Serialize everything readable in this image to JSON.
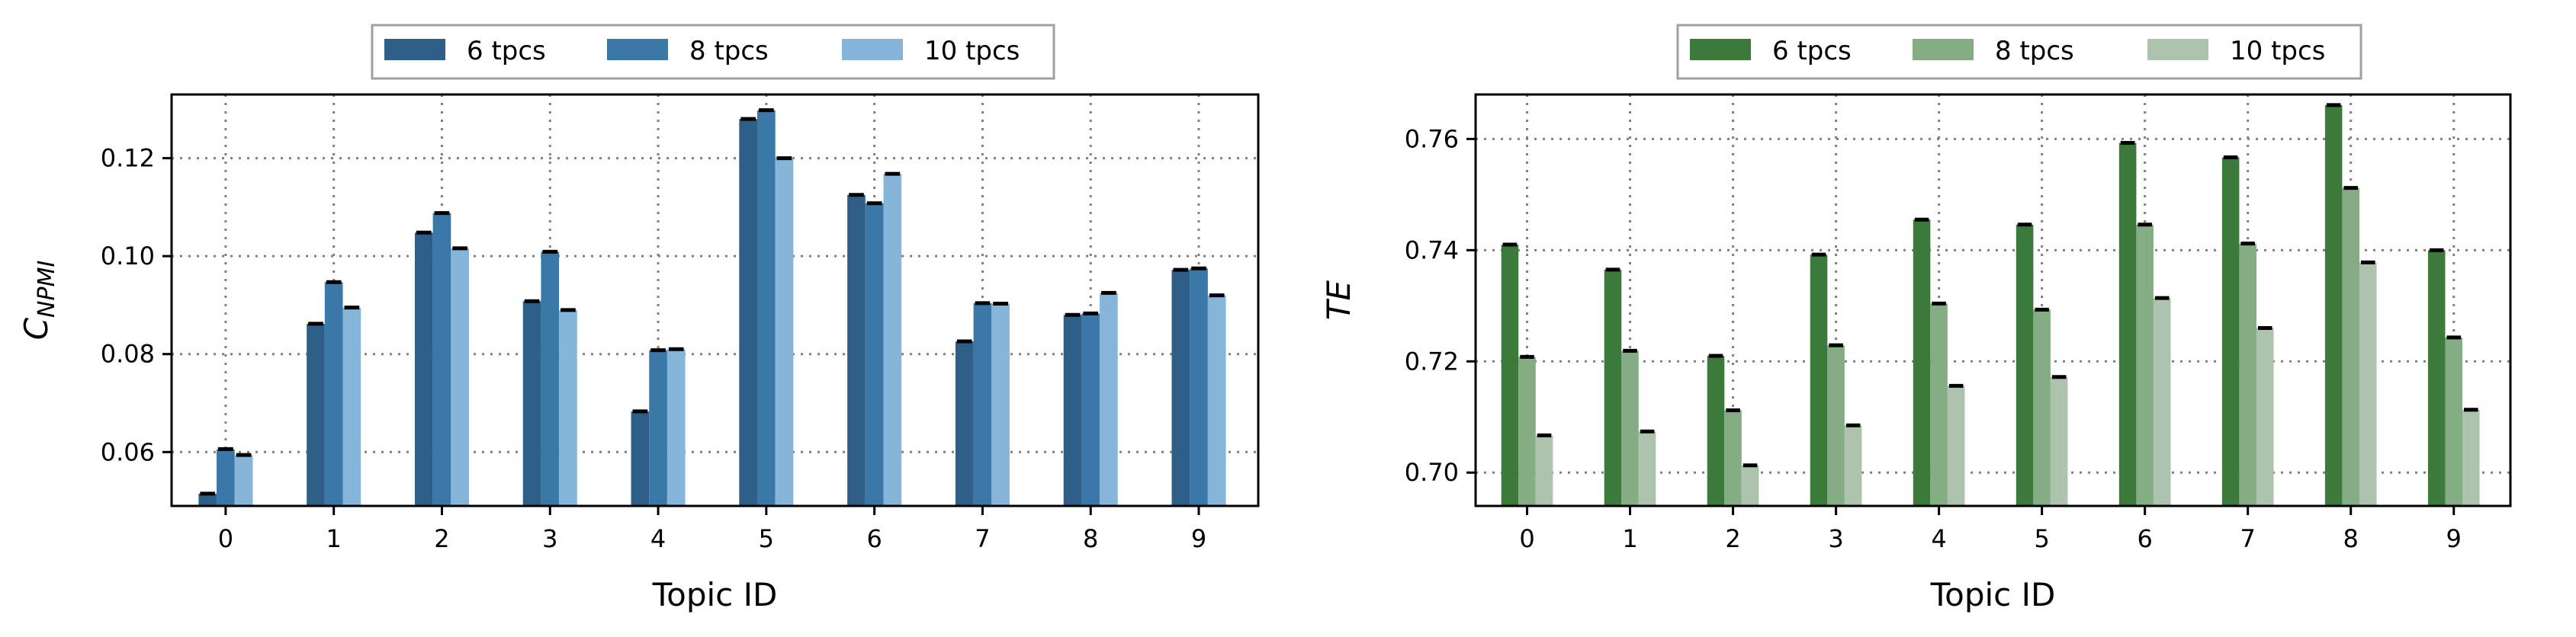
{
  "chart_data": [
    {
      "type": "bar",
      "categories": [
        "0",
        "1",
        "2",
        "3",
        "4",
        "5",
        "6",
        "7",
        "8",
        "9"
      ],
      "series": [
        {
          "name": "6 tpcs",
          "values": [
            0.0515,
            0.0862,
            0.1048,
            0.0908,
            0.0683,
            0.128,
            0.1125,
            0.0826,
            0.088,
            0.0972
          ]
        },
        {
          "name": "8 tpcs",
          "values": [
            0.0606,
            0.0947,
            0.1088,
            0.1009,
            0.0808,
            0.1298,
            0.1108,
            0.0904,
            0.0883,
            0.0975
          ]
        },
        {
          "name": "10 tpcs",
          "values": [
            0.0594,
            0.0895,
            0.1016,
            0.089,
            0.081,
            0.12,
            0.1168,
            0.0903,
            0.0925,
            0.092
          ]
        }
      ],
      "colors": [
        "#2e5f88",
        "#3a78a8",
        "#86b5da"
      ],
      "xlabel": "Topic ID",
      "ylabel": "C",
      "ylabel_sub": "NPMI",
      "ylim": [
        0.049,
        0.133
      ],
      "yticks": [
        "0.06",
        "0.08",
        "0.10",
        "0.12"
      ],
      "grid": true,
      "legend_position": "top-center"
    },
    {
      "type": "bar",
      "categories": [
        "0",
        "1",
        "2",
        "3",
        "4",
        "5",
        "6",
        "7",
        "8",
        "9"
      ],
      "series": [
        {
          "name": "6 tpcs",
          "values": [
            0.741,
            0.7365,
            0.721,
            0.7392,
            0.7455,
            0.7446,
            0.7593,
            0.7567,
            0.7661,
            0.74
          ]
        },
        {
          "name": "8 tpcs",
          "values": [
            0.7208,
            0.7219,
            0.7112,
            0.7229,
            0.7304,
            0.7293,
            0.7446,
            0.7412,
            0.7512,
            0.7243
          ]
        },
        {
          "name": "10 tpcs",
          "values": [
            0.7067,
            0.7074,
            0.7013,
            0.7085,
            0.7156,
            0.7172,
            0.7314,
            0.726,
            0.7378,
            0.7113
          ]
        }
      ],
      "colors": [
        "#3b7a3b",
        "#84ad84",
        "#adc3ad"
      ],
      "xlabel": "Topic ID",
      "ylabel": "TE",
      "ylim": [
        0.694,
        0.768
      ],
      "yticks": [
        "0.70",
        "0.72",
        "0.74",
        "0.76"
      ],
      "grid": true,
      "legend_position": "top-center"
    }
  ]
}
